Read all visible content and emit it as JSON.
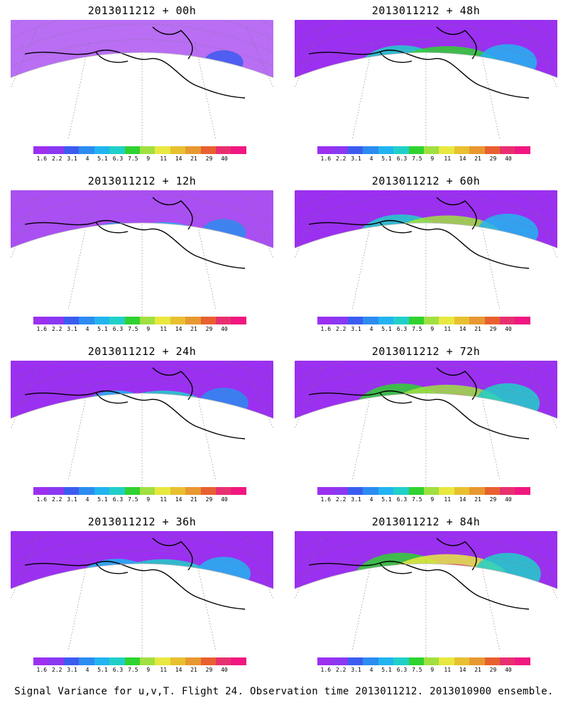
{
  "panels": [
    {
      "title": "2013011212 + 00h",
      "intensity": 0.15
    },
    {
      "title": "2013011212 + 48h",
      "intensity": 0.72
    },
    {
      "title": "2013011212 + 12h",
      "intensity": 0.3
    },
    {
      "title": "2013011212 + 60h",
      "intensity": 0.8
    },
    {
      "title": "2013011212 + 24h",
      "intensity": 0.45
    },
    {
      "title": "2013011212 + 72h",
      "intensity": 0.88
    },
    {
      "title": "2013011212 + 36h",
      "intensity": 0.58
    },
    {
      "title": "2013011212 + 84h",
      "intensity": 0.95
    }
  ],
  "colorbar": {
    "ticks": [
      "1.6",
      "2.2",
      "3.1",
      "4",
      "5.1",
      "6.3",
      "7.5",
      "9",
      "11",
      "14",
      "21",
      "29",
      "40"
    ],
    "colors": [
      "#9b30f0",
      "#8a38f2",
      "#3c5cf0",
      "#2c8cf0",
      "#22b4f0",
      "#20d0c8",
      "#30d230",
      "#a0e040",
      "#e8e840",
      "#e8c030",
      "#e89830",
      "#e86030",
      "#e83070",
      "#f01880"
    ]
  },
  "caption": "Signal Variance for u,v,T. Flight 24. Observation time 2013011212. 2013010900 ensemble."
}
